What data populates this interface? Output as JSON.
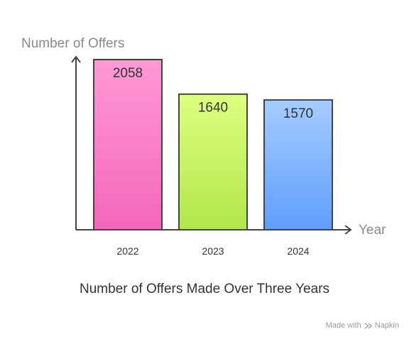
{
  "chart_data": {
    "type": "bar",
    "categories": [
      "2022",
      "2023",
      "2024"
    ],
    "values": [
      2058,
      1640,
      1570
    ],
    "value_labels": [
      "2058",
      "1640",
      "1570"
    ],
    "title": "Number of Offers Made Over Three Years",
    "xlabel": "Year",
    "ylabel": "Number of Offers",
    "ylim": [
      0,
      2058
    ],
    "grid": false,
    "legend": "none",
    "colors": [
      {
        "top": "#ff99d6",
        "bottom": "#f466bb"
      },
      {
        "top": "#dcff80",
        "bottom": "#b2e64a"
      },
      {
        "top": "#a6ccff",
        "bottom": "#5f9dfb"
      }
    ]
  },
  "watermark": {
    "made_with": "Made with",
    "brand": "Napkin",
    "icon": "napkin-logo-icon"
  }
}
